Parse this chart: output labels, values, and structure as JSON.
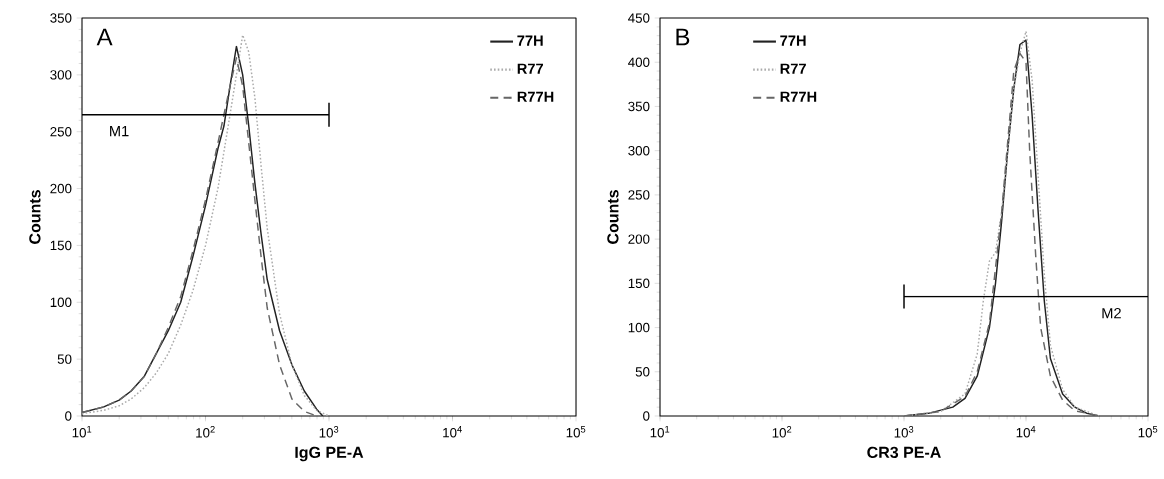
{
  "chart_data": [
    {
      "type": "line",
      "title": "A",
      "xlabel": "IgG PE-A",
      "ylabel": "Counts",
      "log": "x",
      "legend": "top right",
      "xlim": [
        10,
        100000
      ],
      "ylim": [
        0,
        350
      ],
      "xticks": [
        {
          "value": 10,
          "label": "10$^{1}$"
        },
        {
          "value": 100,
          "label": "10$^{2}$"
        },
        {
          "value": 1000,
          "label": "10$^{3}$"
        },
        {
          "value": 10000,
          "label": "10$^{4}$"
        },
        {
          "value": 100000,
          "label": "10$^{5}$"
        }
      ],
      "yticks": [
        0,
        50,
        100,
        150,
        200,
        250,
        300,
        350
      ],
      "series": [
        {
          "name": "77H",
          "color": "#222222",
          "line_style": "solid",
          "x": [
            10,
            15,
            20,
            25,
            32,
            40,
            50,
            63,
            79,
            100,
            126,
            141,
            158,
            178,
            200,
            224,
            251,
            282,
            316,
            398,
            501,
            631,
            794,
            891
          ],
          "values": [
            3,
            8,
            14,
            22,
            35,
            55,
            75,
            100,
            140,
            185,
            235,
            255,
            290,
            325,
            300,
            255,
            205,
            160,
            120,
            75,
            45,
            22,
            6,
            0
          ]
        },
        {
          "name": "R77",
          "color": "#aaaaaa",
          "line_style": "dotted",
          "x": [
            10,
            15,
            20,
            25,
            32,
            40,
            50,
            63,
            79,
            100,
            126,
            158,
            178,
            200,
            224,
            251,
            282,
            316,
            398,
            501,
            631,
            794,
            1000
          ],
          "values": [
            2,
            5,
            9,
            15,
            25,
            38,
            55,
            80,
            110,
            150,
            200,
            265,
            300,
            335,
            320,
            280,
            220,
            165,
            90,
            45,
            18,
            5,
            0
          ]
        },
        {
          "name": "R77H",
          "color": "#666666",
          "line_style": "dashed",
          "x": [
            10,
            15,
            20,
            25,
            32,
            40,
            50,
            63,
            79,
            100,
            126,
            141,
            158,
            178,
            200,
            224,
            251,
            282,
            316,
            398,
            501,
            631,
            794
          ],
          "values": [
            3,
            8,
            14,
            22,
            35,
            55,
            78,
            105,
            145,
            190,
            240,
            265,
            290,
            315,
            290,
            240,
            190,
            140,
            95,
            45,
            15,
            4,
            0
          ]
        },
        {
          "type": "line",
          "color": "#000000",
          "line_style": "solid",
          "x": [
            10,
            1000
          ],
          "values": [
            265,
            265
          ]
        }
      ],
      "annotations": [
        "M1"
      ]
    },
    {
      "type": "line",
      "title": "B",
      "xlabel": "CR3 PE-A",
      "ylabel": "Counts",
      "log": "x",
      "legend": "top left",
      "xlim": [
        10,
        100000
      ],
      "ylim": [
        0,
        450
      ],
      "xticks": [
        {
          "value": 10,
          "label": "10$^{1}$"
        },
        {
          "value": 100,
          "label": "10$^{2}$"
        },
        {
          "value": 1000,
          "label": "10$^{3}$"
        },
        {
          "value": 10000,
          "label": "10$^{4}$"
        },
        {
          "value": 100000,
          "label": "10$^{5}$"
        }
      ],
      "yticks": [
        0,
        50,
        100,
        150,
        200,
        250,
        300,
        350,
        400,
        450
      ],
      "series": [
        {
          "name": "77H",
          "color": "#222222",
          "line_style": "solid",
          "x": [
            1000,
            1585,
            2512,
            3162,
            3981,
            5012,
            5623,
            6310,
            7079,
            7943,
            8913,
            10000,
            11220,
            12589,
            14125,
            15849,
            19953,
            25119,
            31623,
            39811
          ],
          "values": [
            0,
            3,
            10,
            20,
            45,
            100,
            150,
            220,
            300,
            370,
            420,
            425,
            340,
            230,
            130,
            65,
            25,
            10,
            3,
            0
          ]
        },
        {
          "name": "R77",
          "color": "#aaaaaa",
          "line_style": "dotted",
          "x": [
            1000,
            1995,
            3162,
            3981,
            4467,
            5012,
            5623,
            6310,
            7079,
            7943,
            8913,
            10000,
            11220,
            12589,
            14125,
            15849,
            19953,
            25119,
            39811
          ],
          "values": [
            0,
            5,
            25,
            70,
            130,
            175,
            185,
            230,
            300,
            370,
            410,
            435,
            380,
            270,
            160,
            80,
            30,
            10,
            0
          ]
        },
        {
          "name": "R77H",
          "color": "#666666",
          "line_style": "dashed",
          "x": [
            1000,
            1995,
            3162,
            3981,
            5012,
            6310,
            7079,
            7943,
            8913,
            10000,
            10715,
            12023,
            13183,
            15849,
            19953,
            25119,
            39811
          ],
          "values": [
            0,
            5,
            22,
            50,
            105,
            230,
            310,
            390,
            410,
            400,
            300,
            180,
            100,
            45,
            18,
            6,
            0
          ]
        },
        {
          "type": "line",
          "color": "#000000",
          "line_style": "solid",
          "x": [
            1000,
            100000
          ],
          "values": [
            135,
            135
          ]
        }
      ],
      "annotations": [
        "M2"
      ]
    }
  ]
}
